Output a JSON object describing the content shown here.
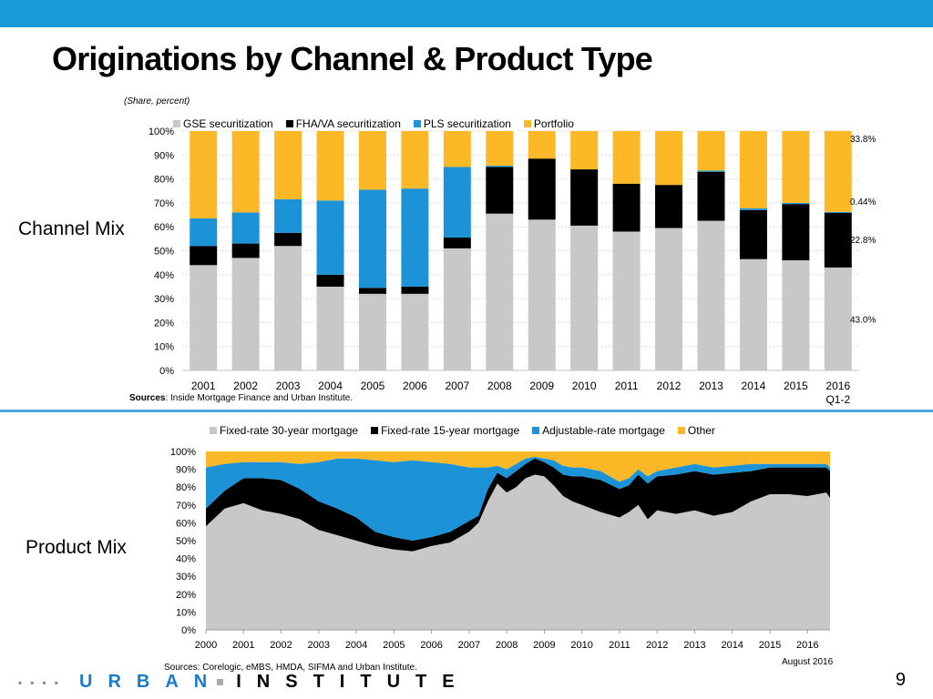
{
  "title": "Originations by Channel & Product Type",
  "subtitle": "(Share, percent)",
  "side_labels": {
    "channel": "Channel Mix",
    "product": "Product Mix"
  },
  "page_number": "9",
  "footer": {
    "urban": "URBAN",
    "institute": "INSTITUTE"
  },
  "colors": {
    "topbar": "#1a9ad6",
    "gse": "#c8c8c8",
    "fha": "#000000",
    "pls": "#1b93d6",
    "portfolio": "#fcb827"
  },
  "chart_data": [
    {
      "type": "bar",
      "stacked": true,
      "categories": [
        "2001",
        "2002",
        "2003",
        "2004",
        "2005",
        "2006",
        "2007",
        "2008",
        "2009",
        "2010",
        "2011",
        "2012",
        "2013",
        "2014",
        "2015",
        "2016"
      ],
      "category_sublabels": {
        "2016": "Q1-2"
      },
      "series": [
        {
          "name": "GSE securitization",
          "color": "#c8c8c8",
          "values": [
            44,
            47,
            52,
            35,
            32,
            32,
            51,
            65.5,
            63,
            60.5,
            58,
            59.5,
            62.5,
            46.5,
            46,
            43
          ]
        },
        {
          "name": "FHA/VA securitization",
          "color": "#000000",
          "values": [
            8,
            6,
            5.5,
            5,
            2.5,
            3,
            4.5,
            19.5,
            25.5,
            23.5,
            20,
            18,
            20.5,
            20.5,
            23.5,
            22.8
          ]
        },
        {
          "name": "PLS securitization",
          "color": "#1b93d6",
          "values": [
            11.5,
            13,
            14,
            31,
            41,
            41,
            29.5,
            0.5,
            0,
            0,
            0,
            0,
            0.5,
            0.7,
            0.5,
            0.44
          ]
        },
        {
          "name": "Portfolio",
          "color": "#fcb827",
          "values": [
            36.5,
            34,
            28.5,
            29,
            24.5,
            24,
            15,
            14.5,
            11.5,
            16,
            22,
            22.5,
            16.5,
            32.3,
            30,
            33.8
          ]
        }
      ],
      "annotations": [
        "33.8%",
        "0.44%",
        "22.8%",
        "43.0%"
      ],
      "ylim": [
        0,
        100
      ],
      "yticks": [
        "0%",
        "10%",
        "20%",
        "30%",
        "40%",
        "50%",
        "60%",
        "70%",
        "80%",
        "90%",
        "100%"
      ],
      "source": {
        "bold": "Sources",
        "text": ": Inside Mortgage Finance and Urban Institute."
      }
    },
    {
      "type": "area",
      "stacked": true,
      "x": [
        2000,
        2000.5,
        2001,
        2001.5,
        2002,
        2002.5,
        2003,
        2003.5,
        2004,
        2004.5,
        2005,
        2005.5,
        2006,
        2006.5,
        2007,
        2007.25,
        2007.5,
        2007.75,
        2008,
        2008.25,
        2008.5,
        2008.75,
        2009,
        2009.25,
        2009.5,
        2009.75,
        2010,
        2010.5,
        2011,
        2011.25,
        2011.5,
        2011.75,
        2012,
        2012.5,
        2013,
        2013.5,
        2014,
        2014.5,
        2015,
        2015.5,
        2016,
        2016.5,
        2016.6
      ],
      "xticks": [
        "2000",
        "2001",
        "2002",
        "2003",
        "2004",
        "2005",
        "2006",
        "2007",
        "2008",
        "2009",
        "2010",
        "2011",
        "2012",
        "2013",
        "2014",
        "2015",
        "2016"
      ],
      "series": [
        {
          "name": "Fixed-rate 30-year mortgage",
          "color": "#c8c8c8",
          "values": [
            58,
            68,
            71,
            67,
            65,
            62,
            56,
            53,
            50,
            47,
            45,
            44,
            47,
            49,
            55,
            60,
            72,
            82,
            77,
            80,
            85,
            87,
            86,
            81,
            75,
            72,
            70,
            66,
            63,
            66,
            70,
            62,
            67,
            65,
            67,
            64,
            66,
            72,
            76,
            76,
            75,
            77,
            74
          ]
        },
        {
          "name": "Fixed-rate 15-year mortgage",
          "color": "#000000",
          "values": [
            10,
            10,
            14,
            18,
            19,
            17,
            16,
            15,
            13,
            8,
            7,
            6,
            5,
            6,
            6,
            4,
            7,
            6,
            8,
            9,
            8,
            9,
            8,
            10,
            12,
            14,
            16,
            18,
            16,
            15,
            17,
            20,
            19,
            22,
            22,
            23,
            22,
            17,
            15,
            15,
            16,
            14,
            15
          ]
        },
        {
          "name": "Adjustable-rate mortgage",
          "color": "#1b93d6",
          "values": [
            23,
            15,
            9,
            9,
            10,
            14,
            22,
            28,
            33,
            40,
            42,
            45,
            42,
            38,
            30,
            27,
            12,
            4,
            5,
            4,
            3,
            1,
            2,
            4,
            5,
            5,
            5,
            5,
            4,
            4,
            3,
            4,
            3,
            4,
            4,
            4,
            4,
            4,
            2,
            2,
            2,
            2,
            2
          ]
        },
        {
          "name": "Other",
          "color": "#fcb827",
          "values": [
            9,
            7,
            6,
            6,
            6,
            7,
            6,
            4,
            4,
            5,
            6,
            5,
            6,
            7,
            9,
            9,
            9,
            8,
            10,
            7,
            4,
            3,
            4,
            5,
            8,
            9,
            9,
            11,
            17,
            15,
            10,
            14,
            11,
            9,
            7,
            9,
            8,
            7,
            7,
            7,
            7,
            7,
            9
          ]
        }
      ],
      "ylim": [
        0,
        100
      ],
      "yticks": [
        "0%",
        "10%",
        "20%",
        "30%",
        "40%",
        "50%",
        "60%",
        "70%",
        "80%",
        "90%",
        "100%"
      ],
      "date_note": "August 2016",
      "source": "Sources: Corelogic, eMBS, HMDA, SIFMA and Urban Institute."
    }
  ]
}
